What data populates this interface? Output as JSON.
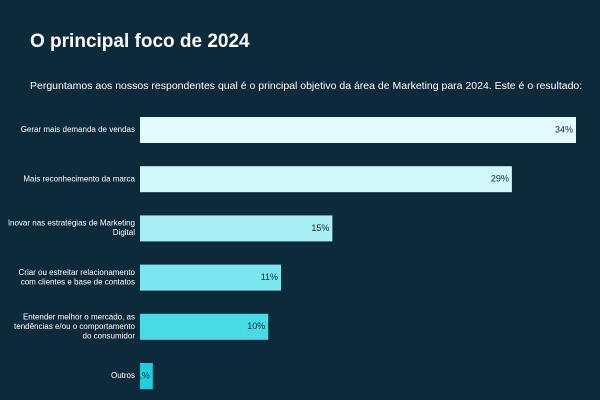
{
  "chart_data": {
    "type": "bar",
    "orientation": "horizontal",
    "title": "O principal foco de 2024",
    "subtitle": "Perguntamos aos nossos respondentes qual é o principal objetivo da área de Marketing para 2024. Este é o resultado:",
    "categories": [
      "Gerar mais demanda de vendas",
      "Mais reconhecimento da marca",
      "Inovar nas estratégias de Marketing\nDigital",
      "Criar ou estreitar relacionamento\ncom clientes e base de contatos",
      "Entender melhor o mercado, as\ntendências e/ou o comportamento\ndo consumidor",
      "Outros"
    ],
    "values": [
      34,
      29,
      15,
      11,
      10,
      1
    ],
    "value_labels": [
      "34%",
      "29%",
      "15%",
      "11%",
      "10%",
      "1%"
    ],
    "colors": [
      "#e3fbfd",
      "#d3f8fb",
      "#a8eff5",
      "#7ce6ee",
      "#48dbe6",
      "#1ccfdd"
    ]
  }
}
